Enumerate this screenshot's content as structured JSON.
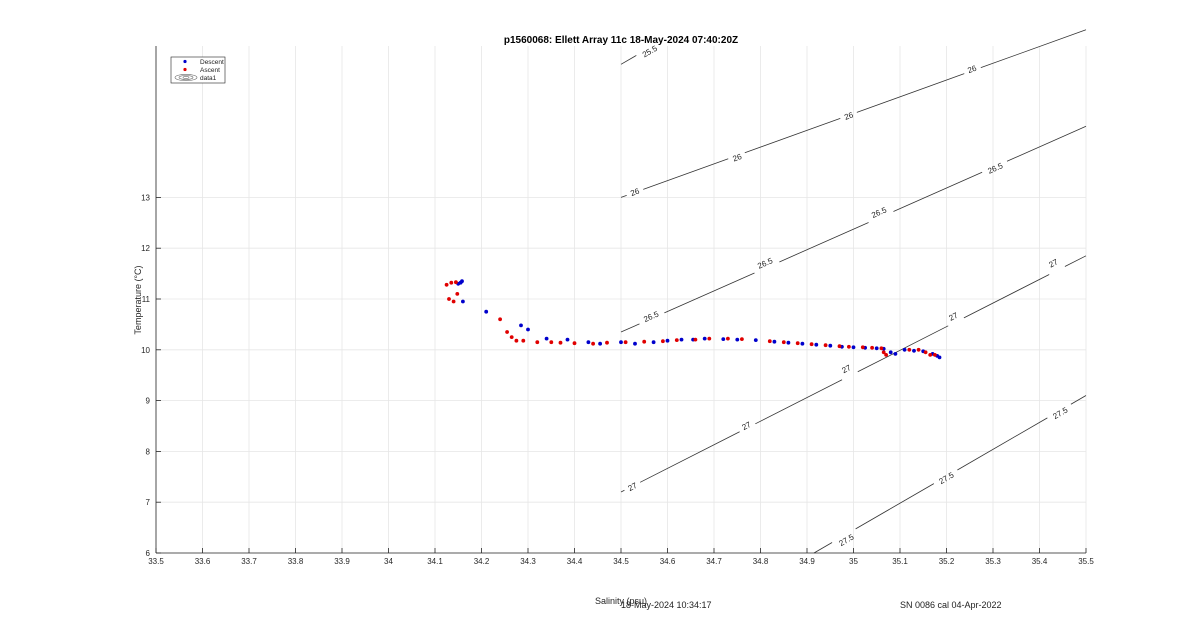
{
  "footer": {
    "timestamp": "18-May-2024 10:34:17",
    "serial": "SN 0086 cal 04-Apr-2022"
  },
  "chart_data": {
    "type": "scatter",
    "title": "p1560068: Ellett Array 11c 18-May-2024 07:40:20Z",
    "xlabel": "Salinity (psu)",
    "ylabel": "Temperature (°C)",
    "xlim": [
      33.5,
      35.5
    ],
    "ylim": [
      6,
      16
    ],
    "x_ticks": [
      "33.5",
      "33.6",
      "33.7",
      "33.8",
      "33.9",
      "34",
      "34.1",
      "34.2",
      "34.3",
      "34.4",
      "34.5",
      "34.6",
      "34.7",
      "34.8",
      "34.9",
      "35",
      "35.1",
      "35.2",
      "35.3",
      "35.4",
      "35.5"
    ],
    "y_ticks": [
      "6",
      "7",
      "8",
      "9",
      "10",
      "11",
      "12",
      "13"
    ],
    "grid": true,
    "legend_position": "top-left",
    "legend": [
      "Descent",
      "Ascent",
      "data1"
    ],
    "colors": {
      "descent": "#0000cc",
      "ascent": "#e00000",
      "contour": "#333333",
      "grid": "#e6e6e6"
    },
    "series": [
      {
        "name": "Descent",
        "points": [
          [
            34.155,
            11.32
          ],
          [
            34.158,
            11.35
          ],
          [
            34.15,
            11.3
          ],
          [
            34.16,
            10.95
          ],
          [
            34.21,
            10.75
          ],
          [
            34.285,
            10.48
          ],
          [
            34.3,
            10.4
          ],
          [
            34.34,
            10.22
          ],
          [
            34.385,
            10.2
          ],
          [
            34.43,
            10.15
          ],
          [
            34.455,
            10.12
          ],
          [
            34.5,
            10.15
          ],
          [
            34.53,
            10.12
          ],
          [
            34.57,
            10.15
          ],
          [
            34.6,
            10.18
          ],
          [
            34.63,
            10.2
          ],
          [
            34.655,
            10.2
          ],
          [
            34.68,
            10.22
          ],
          [
            34.72,
            10.21
          ],
          [
            34.75,
            10.2
          ],
          [
            34.79,
            10.19
          ],
          [
            34.83,
            10.16
          ],
          [
            34.86,
            10.14
          ],
          [
            34.89,
            10.12
          ],
          [
            34.92,
            10.1
          ],
          [
            34.95,
            10.08
          ],
          [
            34.975,
            10.06
          ],
          [
            35.0,
            10.05
          ],
          [
            35.025,
            10.04
          ],
          [
            35.05,
            10.03
          ],
          [
            35.065,
            10.02
          ],
          [
            35.08,
            9.95
          ],
          [
            35.09,
            9.92
          ],
          [
            35.11,
            10.0
          ],
          [
            35.13,
            9.98
          ],
          [
            35.15,
            9.97
          ],
          [
            35.17,
            9.92
          ],
          [
            35.18,
            9.88
          ],
          [
            35.185,
            9.85
          ]
        ]
      },
      {
        "name": "Ascent",
        "points": [
          [
            34.125,
            11.28
          ],
          [
            34.135,
            11.32
          ],
          [
            34.145,
            11.33
          ],
          [
            34.13,
            11.0
          ],
          [
            34.14,
            10.95
          ],
          [
            34.148,
            11.1
          ],
          [
            34.24,
            10.6
          ],
          [
            34.255,
            10.35
          ],
          [
            34.265,
            10.25
          ],
          [
            34.275,
            10.18
          ],
          [
            34.29,
            10.18
          ],
          [
            34.32,
            10.15
          ],
          [
            34.35,
            10.15
          ],
          [
            34.37,
            10.14
          ],
          [
            34.4,
            10.13
          ],
          [
            34.44,
            10.12
          ],
          [
            34.47,
            10.14
          ],
          [
            34.51,
            10.15
          ],
          [
            34.55,
            10.16
          ],
          [
            34.59,
            10.17
          ],
          [
            34.62,
            10.19
          ],
          [
            34.66,
            10.2
          ],
          [
            34.69,
            10.22
          ],
          [
            34.73,
            10.22
          ],
          [
            34.76,
            10.21
          ],
          [
            34.82,
            10.17
          ],
          [
            34.85,
            10.15
          ],
          [
            34.88,
            10.13
          ],
          [
            34.91,
            10.11
          ],
          [
            34.94,
            10.09
          ],
          [
            34.97,
            10.07
          ],
          [
            34.99,
            10.06
          ],
          [
            35.02,
            10.05
          ],
          [
            35.04,
            10.04
          ],
          [
            35.06,
            10.03
          ],
          [
            35.065,
            9.95
          ],
          [
            35.07,
            9.9
          ],
          [
            35.12,
            10.0
          ],
          [
            35.14,
            10.0
          ],
          [
            35.155,
            9.95
          ],
          [
            35.165,
            9.9
          ],
          [
            35.175,
            9.9
          ]
        ]
      }
    ],
    "contours": [
      {
        "level": "25.5",
        "points": [
          [
            34.5,
            15.62
          ],
          [
            34.534,
            15.8
          ]
        ],
        "labels": [
          [
            34.562,
            15.87
          ]
        ]
      },
      {
        "level": "26",
        "points": [
          [
            34.5,
            13.0
          ],
          [
            35.5,
            16.3
          ]
        ],
        "labels": [
          [
            34.53,
            13.1
          ],
          [
            34.75,
            13.78
          ],
          [
            34.99,
            14.6
          ],
          [
            35.255,
            15.52
          ]
        ]
      },
      {
        "level": "26.5",
        "points": [
          [
            34.5,
            10.35
          ],
          [
            35.5,
            14.4
          ]
        ],
        "labels": [
          [
            34.565,
            10.65
          ],
          [
            34.81,
            11.7
          ],
          [
            35.055,
            12.7
          ],
          [
            35.305,
            13.57
          ]
        ]
      },
      {
        "level": "27",
        "points": [
          [
            34.5,
            7.2
          ],
          [
            35.5,
            11.85
          ]
        ],
        "labels": [
          [
            34.525,
            7.3
          ],
          [
            34.77,
            8.5
          ],
          [
            34.985,
            9.62
          ],
          [
            35.215,
            10.65
          ],
          [
            35.43,
            11.7
          ]
        ]
      },
      {
        "level": "27.5",
        "points": [
          [
            34.915,
            6.0
          ],
          [
            35.5,
            9.1
          ]
        ],
        "labels": [
          [
            34.985,
            6.25
          ],
          [
            35.2,
            7.47
          ],
          [
            35.445,
            8.75
          ]
        ]
      }
    ]
  }
}
